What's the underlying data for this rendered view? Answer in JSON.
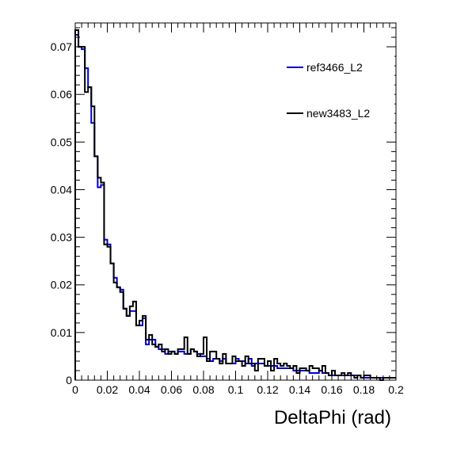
{
  "chart_data": {
    "type": "line",
    "title": "",
    "xlabel": "DeltaPhi (rad)",
    "ylabel": "",
    "xlim": [
      0,
      0.2
    ],
    "ylim": [
      0,
      0.075
    ],
    "grid": false,
    "legend_position": "top-right",
    "x_ticks": [
      "0",
      "0.02",
      "0.04",
      "0.06",
      "0.08",
      "0.1",
      "0.12",
      "0.14",
      "0.16",
      "0.18",
      "0.2"
    ],
    "y_ticks": [
      "0",
      "0.01",
      "0.02",
      "0.03",
      "0.04",
      "0.05",
      "0.06",
      "0.07"
    ],
    "bin_width": 0.002,
    "series": [
      {
        "name": "ref3466_L2",
        "color": "#0000cc",
        "values": [
          0.0725,
          0.07,
          0.0695,
          0.0655,
          0.0615,
          0.054,
          0.047,
          0.0405,
          0.041,
          0.0295,
          0.0285,
          0.0245,
          0.0215,
          0.0195,
          0.019,
          0.015,
          0.0135,
          0.0145,
          0.0145,
          0.0115,
          0.0115,
          0.013,
          0.0075,
          0.0085,
          0.0085,
          0.007,
          0.0065,
          0.0065,
          0.0055,
          0.006,
          0.006,
          0.0055,
          0.006,
          0.006,
          0.0055,
          0.0055,
          0.0065,
          0.006,
          0.0055,
          0.005,
          0.005,
          0.0045,
          0.004,
          0.0045,
          0.0045,
          0.004,
          0.0045,
          0.0035,
          0.0035,
          0.0035,
          0.0045,
          0.004,
          0.004,
          0.0035,
          0.0045,
          0.003,
          0.0035,
          0.0035,
          0.0035,
          0.003,
          0.003,
          0.003,
          0.003,
          0.0025,
          0.0025,
          0.0025,
          0.0025,
          0.0025,
          0.002,
          0.002,
          0.002,
          0.002,
          0.002,
          0.0015,
          0.0015,
          0.0015,
          0.002,
          0.0015,
          0.0015,
          0.001,
          0.001,
          0.001,
          0.001,
          0.001,
          0.001,
          0.001,
          0.001,
          0.001,
          0.001,
          0.0005,
          0.0005,
          0.0005,
          0.0005,
          0.0005,
          0.0005,
          0.0005,
          0.0005,
          0.0005,
          0.0005,
          0.0005
        ]
      },
      {
        "name": "new3483_L2",
        "color": "#000000",
        "values": [
          0.0735,
          0.07,
          0.07,
          0.0605,
          0.0615,
          0.0575,
          0.047,
          0.0425,
          0.0415,
          0.0285,
          0.028,
          0.0245,
          0.0205,
          0.0195,
          0.0185,
          0.015,
          0.0135,
          0.0155,
          0.0165,
          0.0115,
          0.0125,
          0.0135,
          0.0085,
          0.0095,
          0.0075,
          0.007,
          0.0075,
          0.006,
          0.0065,
          0.0055,
          0.006,
          0.0055,
          0.0065,
          0.0065,
          0.009,
          0.0055,
          0.0065,
          0.006,
          0.005,
          0.0055,
          0.009,
          0.004,
          0.006,
          0.006,
          0.0045,
          0.0035,
          0.0055,
          0.0035,
          0.0035,
          0.005,
          0.004,
          0.004,
          0.003,
          0.005,
          0.0035,
          0.0035,
          0.002,
          0.0045,
          0.0045,
          0.003,
          0.004,
          0.002,
          0.0045,
          0.0035,
          0.003,
          0.0035,
          0.003,
          0.0025,
          0.003,
          0.0015,
          0.0025,
          0.0025,
          0.002,
          0.003,
          0.0025,
          0.0025,
          0.002,
          0.003,
          0.0015,
          0.001,
          0.002,
          0.001,
          0.001,
          0.0015,
          0.001,
          0.0015,
          0.001,
          0.0005,
          0.001,
          0.0005,
          0.001,
          0.001,
          0.0005,
          0.0005,
          0.0005,
          0.0,
          0.0005,
          0.0005,
          0.0005,
          0.0005
        ]
      }
    ]
  }
}
